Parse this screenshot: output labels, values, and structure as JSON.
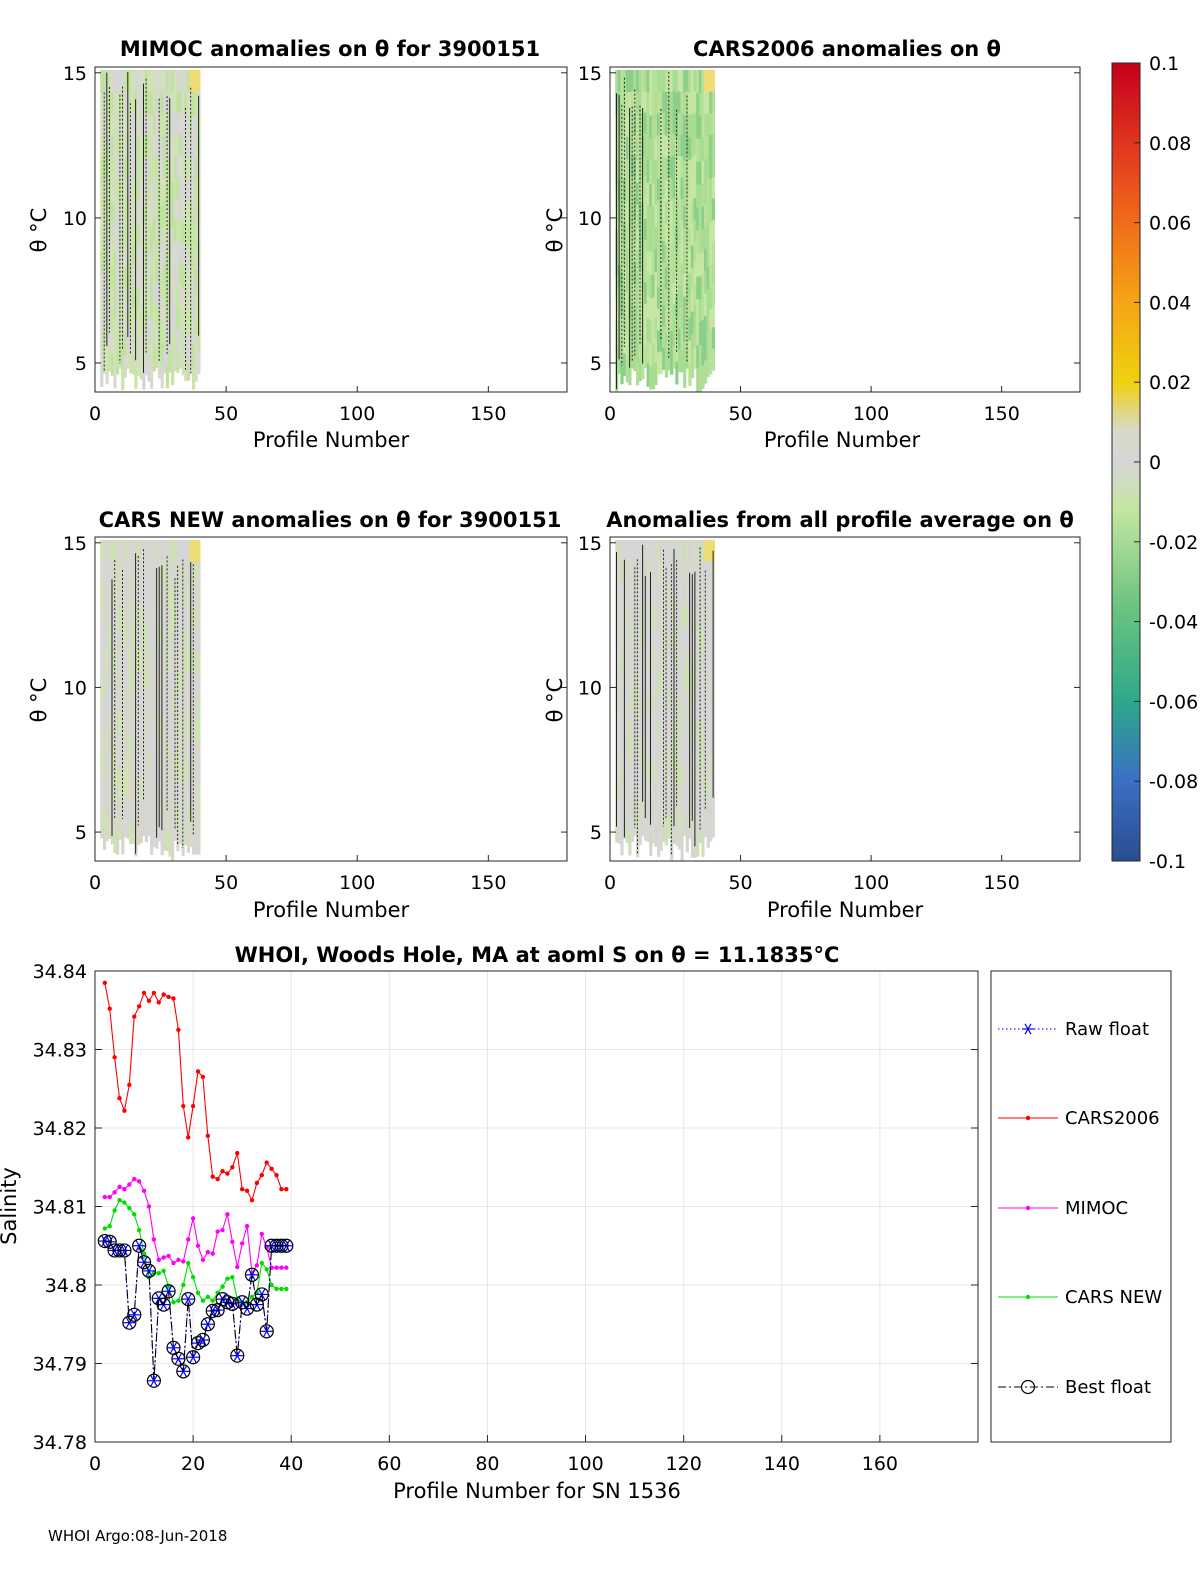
{
  "footer": "WHOI Argo:08-Jun-2018",
  "chart_data": [
    {
      "type": "heatmap",
      "title": "MIMOC anomalies on θ  for 3900151",
      "xlabel": "Profile Number",
      "ylabel": "θ °C",
      "xlim": [
        0,
        180
      ],
      "ylim": [
        4,
        15.2
      ],
      "xticks": [
        0,
        50,
        100,
        150
      ],
      "yticks": [
        5,
        10,
        15
      ],
      "profiles": [
        2,
        40
      ],
      "palette": "green"
    },
    {
      "type": "heatmap",
      "title": "CARS2006 anomalies on θ",
      "xlabel": "Profile Number",
      "ylabel": "θ °C",
      "xlim": [
        0,
        180
      ],
      "ylim": [
        4,
        15.2
      ],
      "xticks": [
        0,
        50,
        100,
        150
      ],
      "yticks": [
        5,
        10,
        15
      ],
      "profiles": [
        2,
        40
      ],
      "palette": "deepgreen"
    },
    {
      "type": "heatmap",
      "title": "CARS NEW anomalies on θ for 3900151",
      "xlabel": "Profile Number",
      "ylabel": "θ °C",
      "xlim": [
        0,
        180
      ],
      "ylim": [
        4,
        15.2
      ],
      "xticks": [
        0,
        50,
        100,
        150
      ],
      "yticks": [
        5,
        10,
        15
      ],
      "profiles": [
        2,
        40
      ],
      "palette": "gray"
    },
    {
      "type": "heatmap",
      "title": "Anomalies from all profile average on θ",
      "xlabel": "Profile Number",
      "ylabel": "θ °C",
      "xlim": [
        0,
        180
      ],
      "ylim": [
        4,
        15.2
      ],
      "xticks": [
        0,
        50,
        100,
        150
      ],
      "yticks": [
        5,
        10,
        15
      ],
      "profiles": [
        2,
        40
      ],
      "palette": "gray2"
    },
    {
      "type": "colorbar",
      "range": [
        -0.1,
        0.1
      ],
      "ticks": [
        "0.1",
        "0.08",
        "0.06",
        "0.04",
        "0.02",
        "0",
        "-0.02",
        "-0.04",
        "-0.06",
        "-0.08",
        "-0.1"
      ],
      "colors": [
        "#c4001a",
        "#e0341e",
        "#f06c1a",
        "#f5a515",
        "#f0d10e",
        "#d6d6d6",
        "#c4e6a0",
        "#6cc47f",
        "#2ea88a",
        "#3a6fc4",
        "#2b4d8f"
      ]
    },
    {
      "type": "line",
      "title": "WHOI, Woods Hole, MA at aoml S on θ = 11.1835°C",
      "xlabel": "Profile Number for SN 1536",
      "ylabel": "Salinity",
      "xlim": [
        0,
        180
      ],
      "ylim": [
        34.78,
        34.84
      ],
      "xticks": [
        0,
        20,
        40,
        60,
        80,
        100,
        120,
        140,
        160
      ],
      "yticks": [
        "34.78",
        "34.79",
        "34.8",
        "34.81",
        "34.82",
        "34.83",
        "34.84"
      ],
      "grid": true,
      "legend_position": "right",
      "x": [
        2,
        3,
        4,
        5,
        6,
        7,
        8,
        9,
        10,
        11,
        12,
        13,
        14,
        15,
        16,
        17,
        18,
        19,
        20,
        21,
        22,
        23,
        24,
        25,
        26,
        27,
        28,
        29,
        30,
        31,
        32,
        33,
        34,
        35,
        36,
        37,
        38,
        39
      ],
      "series": [
        {
          "name": "Raw float",
          "color": "#0000ff",
          "style": "raw",
          "values": [
            34.8056,
            34.8055,
            34.8044,
            34.8044,
            34.8044,
            34.7952,
            34.7962,
            34.805,
            34.8029,
            34.8018,
            34.7878,
            34.7983,
            34.7975,
            34.7992,
            34.792,
            34.7906,
            34.789,
            34.7982,
            34.7908,
            34.7926,
            34.793,
            34.795,
            34.7967,
            34.7968,
            34.7982,
            34.7978,
            34.7976,
            34.791,
            34.7978,
            34.797,
            34.8013,
            34.7975,
            34.7988,
            34.7941,
            34.805,
            34.805,
            34.805,
            34.805
          ]
        },
        {
          "name": "CARS2006",
          "color": "#ff0000",
          "style": "dot",
          "values": [
            34.8385,
            34.8352,
            34.829,
            34.8238,
            34.8222,
            34.8255,
            34.8342,
            34.8355,
            34.8372,
            34.8362,
            34.8372,
            34.836,
            34.837,
            34.8367,
            34.8365,
            34.8325,
            34.8228,
            34.8188,
            34.8228,
            34.8272,
            34.8265,
            34.819,
            34.8138,
            34.8135,
            34.8145,
            34.8142,
            34.815,
            34.8168,
            34.8122,
            34.812,
            34.8108,
            34.813,
            34.814,
            34.8156,
            34.8148,
            34.814,
            34.8122,
            34.8122
          ]
        },
        {
          "name": "MIMOC",
          "color": "#ff00ff",
          "style": "dot",
          "values": [
            34.8112,
            34.8112,
            34.8118,
            34.8125,
            34.8122,
            34.8128,
            34.8135,
            34.8132,
            34.812,
            34.81,
            34.8058,
            34.8032,
            34.8035,
            34.8037,
            34.8028,
            34.8032,
            34.803,
            34.8058,
            34.8085,
            34.805,
            34.8032,
            34.8042,
            34.804,
            34.8068,
            34.807,
            34.809,
            34.8055,
            34.8023,
            34.8053,
            34.8075,
            34.8015,
            34.8025,
            34.8065,
            34.8048,
            34.8022,
            34.8022,
            34.8022,
            34.8022
          ]
        },
        {
          "name": "CARS NEW",
          "color": "#00dd00",
          "style": "dot",
          "values": [
            34.8072,
            34.8075,
            34.8095,
            34.8108,
            34.8105,
            34.8098,
            34.809,
            34.807,
            34.804,
            34.801,
            34.8015,
            34.8015,
            34.8018,
            34.7998,
            34.7978,
            34.798,
            34.8,
            34.8028,
            34.801,
            34.799,
            34.798,
            34.7985,
            34.798,
            34.799,
            34.7998,
            34.8008,
            34.801,
            34.7982,
            34.7978,
            34.7978,
            34.7985,
            34.799,
            34.8028,
            34.802,
            34.8,
            34.7995,
            34.7995,
            34.7995
          ]
        },
        {
          "name": "Best float",
          "color": "#000000",
          "style": "best",
          "values": [
            34.8056,
            34.8055,
            34.8044,
            34.8044,
            34.8044,
            34.7952,
            34.7962,
            34.805,
            34.8029,
            34.8018,
            34.7878,
            34.7983,
            34.7975,
            34.7992,
            34.792,
            34.7906,
            34.789,
            34.7982,
            34.7908,
            34.7926,
            34.793,
            34.795,
            34.7967,
            34.7968,
            34.7982,
            34.7978,
            34.7976,
            34.791,
            34.7978,
            34.797,
            34.8013,
            34.7975,
            34.7988,
            34.7941,
            34.805,
            34.805,
            34.805,
            34.805
          ]
        }
      ]
    }
  ]
}
